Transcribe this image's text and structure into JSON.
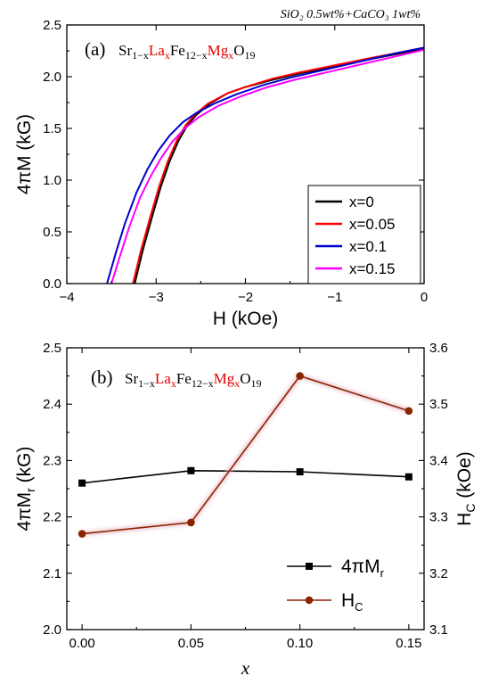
{
  "chart_data": [
    {
      "type": "line",
      "panel_label": "(a)",
      "formula": {
        "sr": "Sr",
        "sr_sub": "1−x",
        "la": "La",
        "la_sub": "x",
        "fe": "Fe",
        "fe_sub": "12−x",
        "mg": "Mg",
        "mg_sub": "x",
        "o": "O",
        "o_sub": "19"
      },
      "annotation": "SiO₂ 0.5wt%+CaCO₃ 1wt%",
      "xlabel": "H (kOe)",
      "ylabel": "4πM (kG)",
      "xlim": [
        -4,
        0
      ],
      "ylim": [
        0,
        2.5
      ],
      "xticks": [
        "−4",
        "−3",
        "−2",
        "−1",
        "0"
      ],
      "yticks": [
        "0.0",
        "0.5",
        "1.0",
        "1.5",
        "2.0",
        "2.5"
      ],
      "legend_position": "bottom-right",
      "series": [
        {
          "name": "x=0",
          "color": "#000000",
          "x": [
            -3.24,
            -3.15,
            -3.05,
            -2.95,
            -2.85,
            -2.75,
            -2.65,
            -2.55,
            -2.4,
            -2.2,
            -2.0,
            -1.7,
            -1.4,
            -1.0,
            -0.6,
            -0.3,
            0.0
          ],
          "y": [
            0.0,
            0.32,
            0.63,
            0.93,
            1.18,
            1.38,
            1.53,
            1.63,
            1.74,
            1.84,
            1.9,
            1.97,
            2.03,
            2.1,
            2.17,
            2.22,
            2.27
          ]
        },
        {
          "name": "x=0.05",
          "color": "#ff0000",
          "x": [
            -3.26,
            -3.17,
            -3.07,
            -2.97,
            -2.87,
            -2.77,
            -2.67,
            -2.57,
            -2.42,
            -2.2,
            -2.0,
            -1.7,
            -1.4,
            -1.0,
            -0.6,
            -0.3,
            0.0
          ],
          "y": [
            0.0,
            0.32,
            0.63,
            0.93,
            1.18,
            1.38,
            1.53,
            1.63,
            1.74,
            1.84,
            1.9,
            1.98,
            2.04,
            2.11,
            2.18,
            2.23,
            2.28
          ]
        },
        {
          "name": "x=0.1",
          "color": "#0000cc",
          "x": [
            -3.55,
            -3.45,
            -3.35,
            -3.22,
            -3.1,
            -2.98,
            -2.85,
            -2.7,
            -2.55,
            -2.35,
            -2.1,
            -1.8,
            -1.5,
            -1.1,
            -0.7,
            -0.3,
            0.0
          ],
          "y": [
            0.0,
            0.3,
            0.58,
            0.88,
            1.1,
            1.28,
            1.43,
            1.56,
            1.65,
            1.74,
            1.83,
            1.92,
            1.99,
            2.07,
            2.15,
            2.23,
            2.28
          ]
        },
        {
          "name": "x=0.15",
          "color": "#ff00ff",
          "x": [
            -3.5,
            -3.4,
            -3.3,
            -3.18,
            -3.06,
            -2.94,
            -2.82,
            -2.68,
            -2.52,
            -2.3,
            -2.05,
            -1.75,
            -1.45,
            -1.05,
            -0.65,
            -0.3,
            0.0
          ],
          "y": [
            0.0,
            0.28,
            0.55,
            0.83,
            1.04,
            1.22,
            1.37,
            1.5,
            1.61,
            1.72,
            1.81,
            1.9,
            1.97,
            2.05,
            2.13,
            2.2,
            2.26
          ]
        }
      ]
    },
    {
      "type": "line",
      "panel_label": "(b)",
      "formula": {
        "sr": "Sr",
        "sr_sub": "1−x",
        "la": "La",
        "la_sub": "x",
        "fe": "Fe",
        "fe_sub": "12−x",
        "mg": "Mg",
        "mg_sub": "x",
        "o": "O",
        "o_sub": "19"
      },
      "xlabel": "x",
      "ylabel_left": "4πMr (kG)",
      "ylabel_left_main": "4πM",
      "ylabel_left_sub": "r",
      "ylabel_left_unit": " (kG)",
      "ylabel_right_main": "H",
      "ylabel_right_sub": "C",
      "ylabel_right_unit": " (kOe)",
      "x": [
        0.0,
        0.05,
        0.1,
        0.15
      ],
      "xlim": [
        -0.007,
        0.157
      ],
      "ylim_left": [
        2.0,
        2.5
      ],
      "ylim_right": [
        3.1,
        3.6
      ],
      "xticks": [
        "0.00",
        "0.05",
        "0.10",
        "0.15"
      ],
      "yticks_left": [
        "2.0",
        "2.1",
        "2.2",
        "2.3",
        "2.4",
        "2.5"
      ],
      "yticks_right": [
        "3.1",
        "3.2",
        "3.3",
        "3.4",
        "3.5",
        "3.6"
      ],
      "legend_position": "bottom-right",
      "series": [
        {
          "name": "4πMr",
          "legend_main": "4πM",
          "legend_sub": "r",
          "axis": "left",
          "color": "#000000",
          "marker": "square",
          "values": [
            2.26,
            2.282,
            2.28,
            2.271
          ]
        },
        {
          "name": "HC",
          "legend_main": "H",
          "legend_sub": "C",
          "axis": "right",
          "color": "#8b2500",
          "marker": "circle",
          "values": [
            3.27,
            3.29,
            3.55,
            3.488
          ]
        }
      ]
    }
  ]
}
